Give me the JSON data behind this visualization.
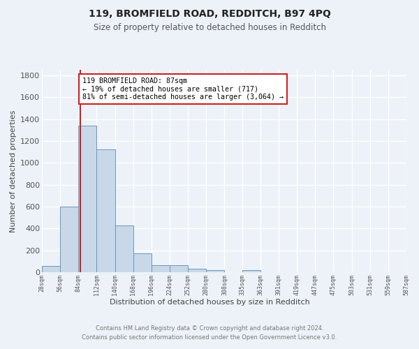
{
  "title1": "119, BROMFIELD ROAD, REDDITCH, B97 4PQ",
  "title2": "Size of property relative to detached houses in Redditch",
  "xlabel": "Distribution of detached houses by size in Redditch",
  "ylabel": "Number of detached properties",
  "bar_values": [
    60,
    600,
    1340,
    1120,
    430,
    170,
    65,
    65,
    35,
    20,
    0,
    20,
    0,
    0,
    0,
    0,
    0,
    0,
    0,
    0
  ],
  "bin_edges": [
    28,
    56,
    84,
    112,
    140,
    168,
    196,
    224,
    252,
    280,
    308,
    335,
    363,
    391,
    419,
    447,
    475,
    503,
    531,
    559,
    587
  ],
  "x_labels": [
    "28sqm",
    "56sqm",
    "84sqm",
    "112sqm",
    "140sqm",
    "168sqm",
    "196sqm",
    "224sqm",
    "252sqm",
    "280sqm",
    "308sqm",
    "335sqm",
    "363sqm",
    "391sqm",
    "419sqm",
    "447sqm",
    "475sqm",
    "503sqm",
    "531sqm",
    "559sqm",
    "587sqm"
  ],
  "bar_color": "#c8d8e8",
  "bar_edge_color": "#6699bb",
  "bg_color": "#edf2f8",
  "grid_color": "#ffffff",
  "vline_x": 87,
  "vline_color": "#cc2222",
  "annotation_text": "119 BROMFIELD ROAD: 87sqm\n← 19% of detached houses are smaller (717)\n81% of semi-detached houses are larger (3,064) →",
  "annotation_box_color": "#ffffff",
  "annotation_border_color": "#cc2222",
  "ylim": [
    0,
    1850
  ],
  "yticks": [
    0,
    200,
    400,
    600,
    800,
    1000,
    1200,
    1400,
    1600,
    1800
  ],
  "footer": "Contains HM Land Registry data © Crown copyright and database right 2024.\nContains public sector information licensed under the Open Government Licence v3.0."
}
